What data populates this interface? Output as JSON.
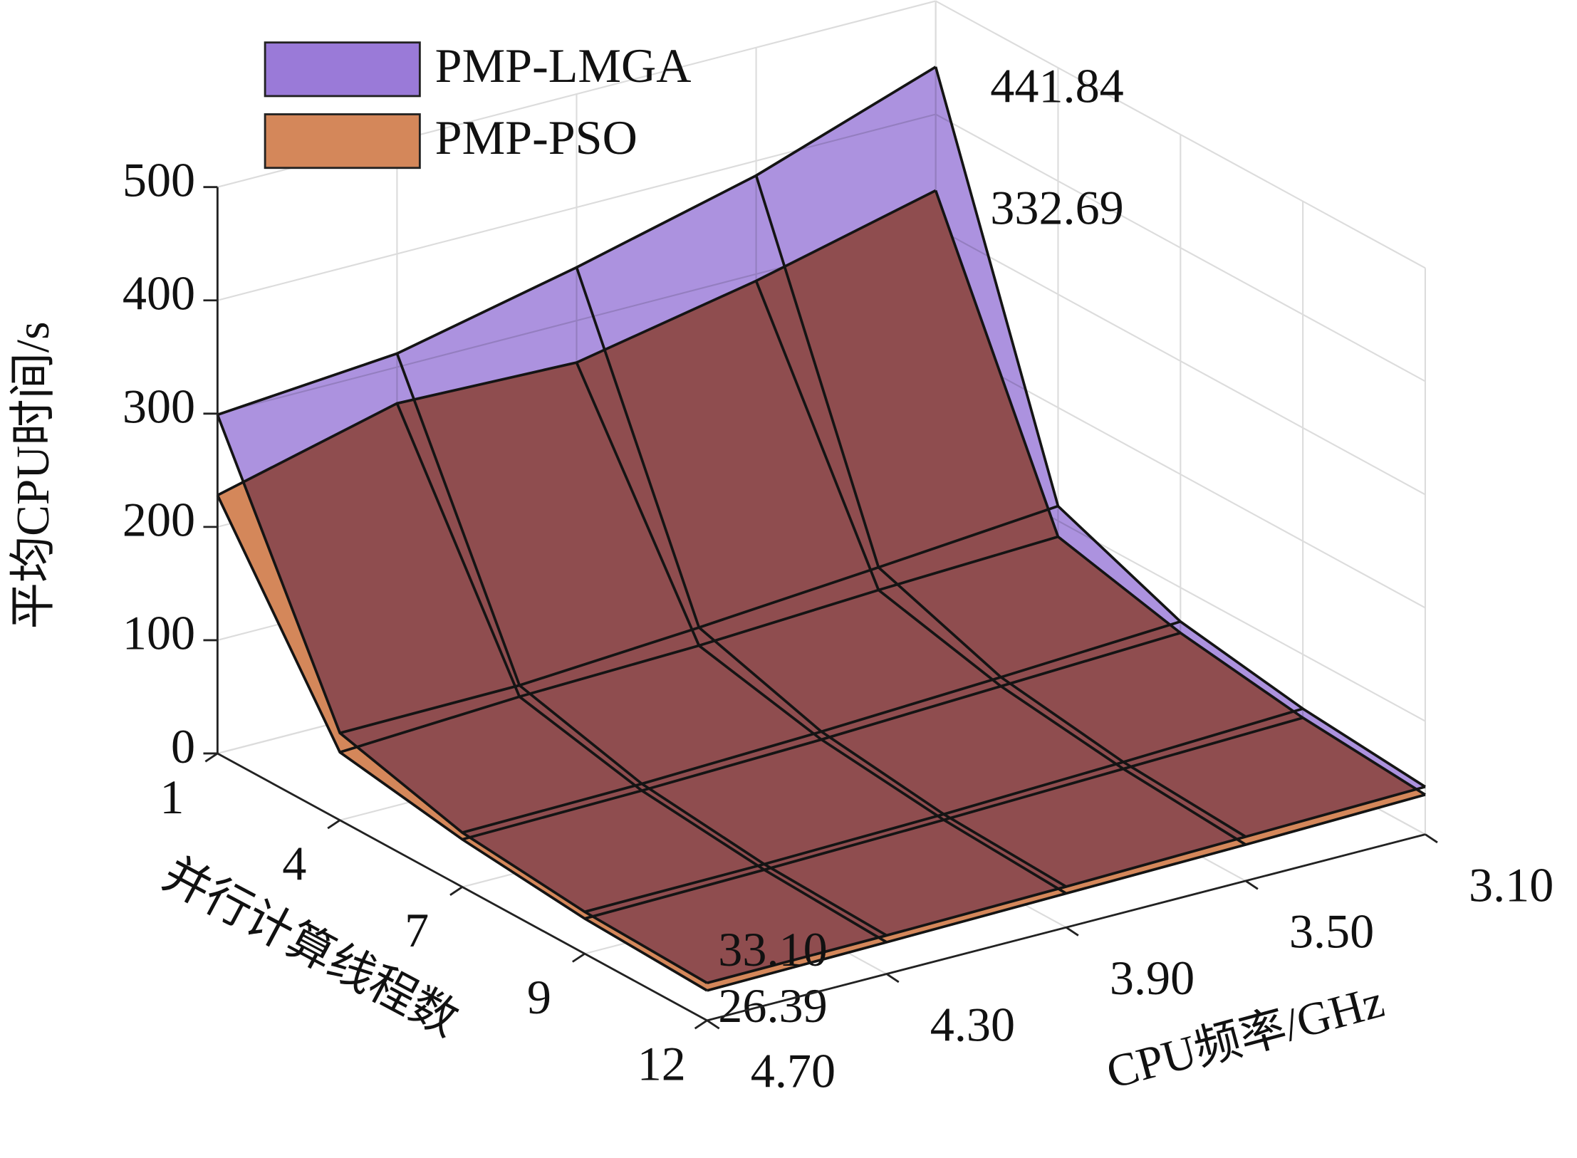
{
  "chart_data": {
    "type": "surface",
    "x_label": "CPU频率/GHz",
    "y_label": "并行计算线程数",
    "z_label": "平均CPU时间/s",
    "x": [
      3.1,
      3.5,
      3.9,
      4.3,
      4.7
    ],
    "xlim": [
      3.1,
      4.7
    ],
    "xticks": [
      {
        "value": 3.1,
        "label": "3.10"
      },
      {
        "value": 3.5,
        "label": "3.50"
      },
      {
        "value": 3.9,
        "label": "3.90"
      },
      {
        "value": 4.3,
        "label": "4.30"
      },
      {
        "value": 4.7,
        "label": "4.70"
      }
    ],
    "categories": [
      "1",
      "4",
      "7",
      "9",
      "12"
    ],
    "zlim": [
      0,
      500
    ],
    "zticks": [
      0,
      100,
      200,
      300,
      400,
      500
    ],
    "grid": true,
    "legend": "upper left",
    "series": [
      {
        "name": "PMP-LMGA",
        "color": "#9a7ad8",
        "values": [
          [
            441.84,
            387,
            347,
            312,
            299
          ],
          [
            113,
            100,
            88,
            78,
            77
          ],
          [
            70,
            62,
            55,
            50,
            48
          ],
          [
            52,
            46,
            41,
            38,
            37
          ],
          [
            42,
            39,
            36,
            34,
            33.1
          ]
        ],
        "value_labels": [
          [
            "441.84",
            null,
            null,
            null,
            null
          ],
          [
            null,
            null,
            null,
            null,
            null
          ],
          [
            null,
            null,
            null,
            null,
            null
          ],
          [
            null,
            null,
            null,
            null,
            null
          ],
          [
            null,
            null,
            null,
            null,
            "33.10"
          ]
        ]
      },
      {
        "name": "PMP-PSO",
        "color": "#d4875a",
        "values": [
          [
            332.69,
            294,
            263,
            268,
            228
          ],
          [
            86,
            80,
            72,
            68,
            60
          ],
          [
            60,
            54,
            48,
            44,
            42
          ],
          [
            44,
            40,
            36,
            33,
            31
          ],
          [
            35,
            32,
            30,
            28,
            26.39
          ]
        ],
        "value_labels": [
          [
            "332.69",
            null,
            null,
            null,
            null
          ],
          [
            null,
            null,
            null,
            null,
            null
          ],
          [
            null,
            null,
            null,
            null,
            null
          ],
          [
            null,
            null,
            null,
            null,
            null
          ],
          [
            null,
            null,
            null,
            null,
            "26.39"
          ]
        ]
      }
    ]
  }
}
